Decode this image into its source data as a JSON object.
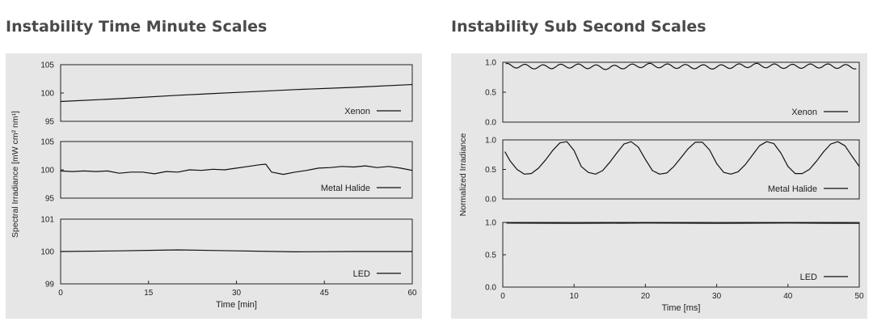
{
  "titles": {
    "left": "Instability Time Minute Scales",
    "right": "Instability Sub Second Scales"
  },
  "colors": {
    "background": "#e6e6e6",
    "line": "#111111",
    "title": "#4a4a4a"
  },
  "chart_data": [
    {
      "type": "line",
      "title": "Instability Time Minute Scales",
      "xlabel": "Time [min]",
      "ylabel": "Spectral Irradiance [mW cm² nm¹]",
      "xlim": [
        0,
        60
      ],
      "xticks": [
        0,
        15,
        30,
        45,
        60
      ],
      "grid": false,
      "subplots": [
        {
          "legend": "Xenon",
          "ylim": [
            95,
            105
          ],
          "yticks": [
            95,
            100,
            105
          ],
          "x": [
            0,
            10,
            20,
            30,
            40,
            50,
            60
          ],
          "y": [
            98.5,
            99.0,
            99.6,
            100.1,
            100.6,
            101.0,
            101.5
          ]
        },
        {
          "legend": "Metal Halide",
          "ylim": [
            95,
            105
          ],
          "yticks": [
            95,
            100,
            105
          ],
          "x": [
            0,
            2,
            4,
            6,
            8,
            10,
            12,
            14,
            16,
            18,
            20,
            22,
            24,
            26,
            28,
            30,
            32,
            34,
            35,
            36,
            38,
            40,
            42,
            44,
            46,
            48,
            50,
            52,
            54,
            56,
            58,
            60
          ],
          "y": [
            99.8,
            99.7,
            99.8,
            99.7,
            99.8,
            99.4,
            99.6,
            99.6,
            99.3,
            99.7,
            99.6,
            100.0,
            99.9,
            100.1,
            100.0,
            100.3,
            100.6,
            100.9,
            101.0,
            99.6,
            99.2,
            99.6,
            99.9,
            100.3,
            100.4,
            100.6,
            100.5,
            100.7,
            100.4,
            100.6,
            100.3,
            99.9
          ]
        },
        {
          "legend": "LED",
          "ylim": [
            99,
            101
          ],
          "yticks": [
            99,
            100,
            101
          ],
          "x": [
            0,
            10,
            20,
            30,
            40,
            50,
            60
          ],
          "y": [
            100.0,
            100.02,
            100.05,
            100.02,
            99.99,
            100.0,
            100.0
          ]
        }
      ]
    },
    {
      "type": "line",
      "title": "Instability Sub Second Scales",
      "xlabel": "Time [ms]",
      "ylabel": "Normalized Irradiance",
      "xlim": [
        0,
        50
      ],
      "xticks": [
        0,
        10,
        20,
        30,
        40,
        50
      ],
      "grid": false,
      "subplots": [
        {
          "legend": "Xenon",
          "ylim": [
            0.0,
            1.0
          ],
          "yticks": [
            0.0,
            0.5,
            1.0
          ],
          "x": [
            0,
            5,
            10,
            15,
            20,
            25,
            30,
            35,
            40,
            45,
            50
          ],
          "y": [
            0.95,
            0.92,
            0.94,
            0.91,
            0.95,
            0.93,
            0.92,
            0.95,
            0.93,
            0.94,
            0.92
          ],
          "ripple_period": 2.5,
          "ripple_amplitude": 0.035
        },
        {
          "legend": "Metal Halide",
          "ylim": [
            0.0,
            1.0
          ],
          "yticks": [
            0.0,
            0.5,
            1.0
          ],
          "x": [
            0.3,
            1,
            2,
            3,
            4,
            5,
            6,
            7,
            8,
            9,
            10,
            11,
            12,
            13,
            14,
            15,
            16,
            17,
            18,
            19,
            20,
            21,
            22,
            23,
            24,
            25,
            26,
            27,
            28,
            29,
            30,
            31,
            32,
            33,
            34,
            35,
            36,
            37,
            38,
            39,
            40,
            41,
            42,
            43,
            44,
            45,
            46,
            47,
            48,
            49,
            50
          ],
          "y": [
            0.8,
            0.65,
            0.5,
            0.42,
            0.43,
            0.52,
            0.66,
            0.82,
            0.95,
            0.97,
            0.82,
            0.55,
            0.45,
            0.42,
            0.48,
            0.62,
            0.78,
            0.93,
            0.97,
            0.88,
            0.67,
            0.48,
            0.42,
            0.44,
            0.55,
            0.7,
            0.85,
            0.96,
            0.96,
            0.83,
            0.6,
            0.45,
            0.42,
            0.46,
            0.58,
            0.74,
            0.9,
            0.97,
            0.94,
            0.78,
            0.55,
            0.43,
            0.43,
            0.5,
            0.64,
            0.8,
            0.93,
            0.97,
            0.9,
            0.72,
            0.55
          ]
        },
        {
          "legend": "LED",
          "ylim": [
            0.0,
            1.0
          ],
          "yticks": [
            0.0,
            0.5,
            1.0
          ],
          "x": [
            0.5,
            10,
            20,
            30,
            40,
            50
          ],
          "y": [
            0.99,
            0.985,
            0.99,
            0.985,
            0.99,
            0.985
          ]
        }
      ]
    }
  ]
}
